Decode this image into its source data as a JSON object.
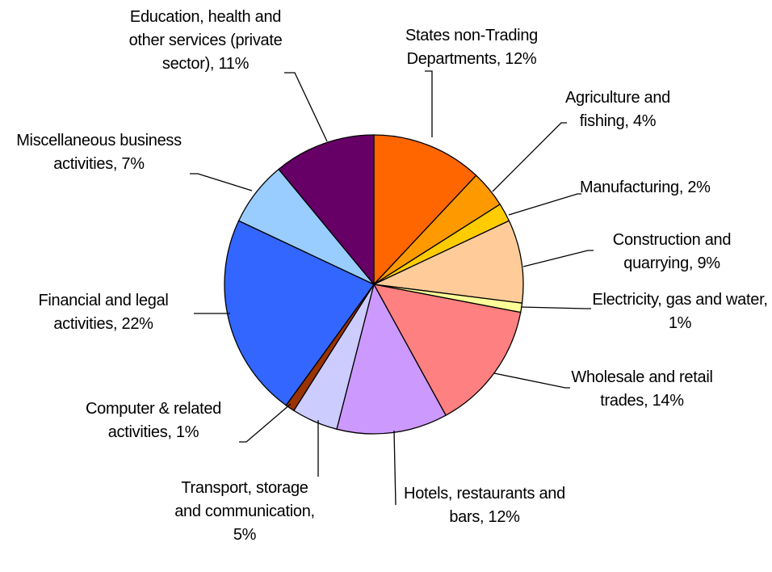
{
  "chart_data": {
    "type": "pie",
    "values": [
      12,
      4,
      2,
      9,
      1,
      14,
      12,
      5,
      1,
      22,
      7,
      11
    ],
    "value_labels": [
      "States non-Trading Departments, 12%",
      "Agriculture and fishing, 4%",
      "Manufacturing, 2%",
      "Construction and quarrying, 9%",
      "Electricity, gas and water, 1%",
      "Wholesale and retail trades, 14%",
      "Hotels, restaurants and bars, 12%",
      "Transport, storage and communication, 5%",
      "Computer & related activities, 1%",
      "Financial and legal activities, 22%",
      "Miscellaneous business activities, 7%",
      "Education, health and other services (private sector), 11%"
    ],
    "colors": [
      "#FF6600",
      "#FF9900",
      "#FFCC00",
      "#FFCC99",
      "#FFFF99",
      "#FF8080",
      "#CC99FF",
      "#CCCCFF",
      "#993300",
      "#3366FF",
      "#99CCFF",
      "#660066"
    ]
  }
}
